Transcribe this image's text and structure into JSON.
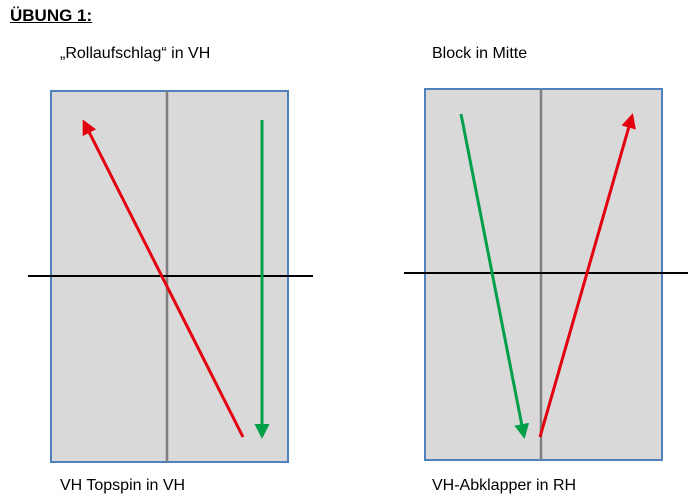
{
  "title": "ÜBUNG 1:",
  "colors": {
    "table_fill": "#d9d9d9",
    "table_border": "#4f81bd",
    "center_line": "#808080",
    "net": "#000000",
    "red_arrow": "#e3000f",
    "green_arrow": "#00a04b"
  },
  "left_diagram": {
    "top_label": "„Rollaufschlag“ in VH",
    "bottom_label": "VH Topspin in VH"
  },
  "right_diagram": {
    "top_label": "Block in Mitte",
    "bottom_label": "VH-Abklapper in RH"
  }
}
